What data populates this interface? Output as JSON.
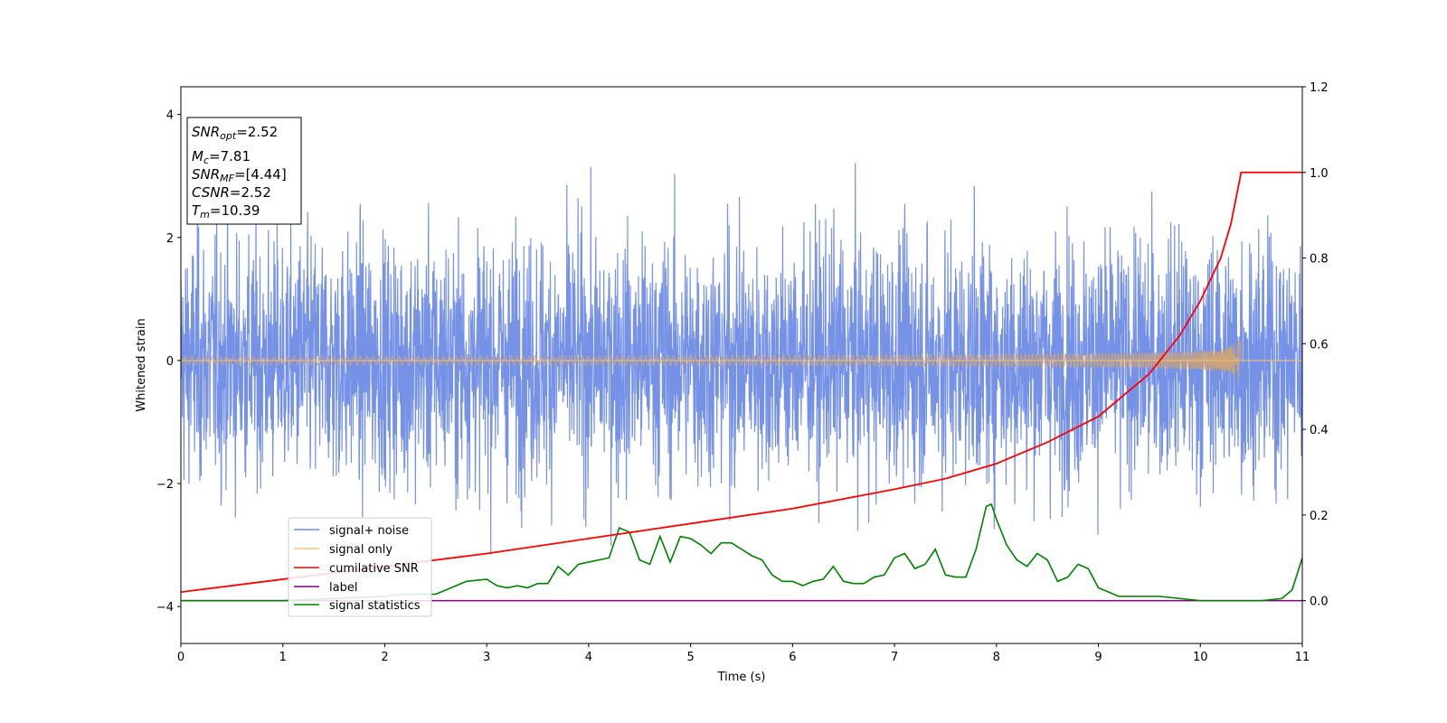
{
  "chart_data": {
    "type": "line",
    "title": "",
    "xlabel": "Time (s)",
    "ylabel": "Whitened strain",
    "y2label": "",
    "xlim": [
      0,
      11
    ],
    "ylim": [
      -4.6,
      4.45
    ],
    "y2lim": [
      -0.1,
      1.2
    ],
    "x_ticks": [
      "0",
      "1",
      "2",
      "3",
      "4",
      "5",
      "6",
      "7",
      "8",
      "9",
      "10",
      "11"
    ],
    "y_ticks": [
      "−4",
      "−2",
      "0",
      "2",
      "4"
    ],
    "y2_ticks": [
      "0.0",
      "0.2",
      "0.4",
      "0.6",
      "0.8",
      "1.0",
      "1.2"
    ],
    "grid": false,
    "legend_position": "lower-left",
    "colors": {
      "signal_noise": "#6f8ce6",
      "signal_only": "#f5c07a",
      "signal_only_envelope": "#c9a37b",
      "cumulative_snr": "#ff0000",
      "label": "#800080",
      "signal_statistics": "#008000"
    },
    "series": [
      {
        "name": "signal+ noise",
        "axis": "left",
        "style": "dense noise trace",
        "approx_std": 1.0,
        "approx_range": [
          -4.15,
          4.05
        ],
        "x_range": [
          0,
          11
        ]
      },
      {
        "name": "signal only",
        "axis": "left",
        "style": "chirp",
        "merger_time": 10.39,
        "peak_amplitude": 0.45,
        "x_range": [
          0,
          10.4
        ]
      },
      {
        "name": "cumilative SNR",
        "axis": "right",
        "x": [
          0,
          1,
          2,
          3,
          4,
          5,
          6,
          7,
          7.5,
          8,
          8.5,
          9,
          9.5,
          9.8,
          10,
          10.2,
          10.3,
          10.4,
          11
        ],
        "y": [
          0.02,
          0.05,
          0.08,
          0.11,
          0.145,
          0.18,
          0.215,
          0.26,
          0.285,
          0.32,
          0.37,
          0.43,
          0.53,
          0.62,
          0.7,
          0.8,
          0.88,
          1.0,
          1.0
        ]
      },
      {
        "name": "label",
        "axis": "right",
        "x": [
          0,
          11
        ],
        "y": [
          0.0,
          0.0
        ]
      },
      {
        "name": "signal statistics",
        "axis": "right",
        "x": [
          0,
          1,
          2,
          2.2,
          2.5,
          2.8,
          3.0,
          3.1,
          3.2,
          3.3,
          3.4,
          3.5,
          3.6,
          3.7,
          3.8,
          3.9,
          4.0,
          4.1,
          4.2,
          4.3,
          4.35,
          4.4,
          4.5,
          4.6,
          4.7,
          4.8,
          4.9,
          5.0,
          5.1,
          5.2,
          5.3,
          5.4,
          5.5,
          5.6,
          5.7,
          5.8,
          5.9,
          6.0,
          6.1,
          6.2,
          6.3,
          6.4,
          6.5,
          6.6,
          6.7,
          6.8,
          6.9,
          7.0,
          7.1,
          7.2,
          7.3,
          7.4,
          7.5,
          7.6,
          7.7,
          7.8,
          7.9,
          7.95,
          8.0,
          8.1,
          8.2,
          8.3,
          8.4,
          8.5,
          8.6,
          8.7,
          8.8,
          8.9,
          9.0,
          9.2,
          9.4,
          9.6,
          9.8,
          10.0,
          10.2,
          10.4,
          10.6,
          10.8,
          10.9,
          11.0
        ],
        "y": [
          0.0,
          0.0,
          0.01,
          0.015,
          0.015,
          0.045,
          0.05,
          0.035,
          0.03,
          0.035,
          0.03,
          0.04,
          0.04,
          0.08,
          0.06,
          0.085,
          0.09,
          0.095,
          0.1,
          0.17,
          0.165,
          0.16,
          0.095,
          0.085,
          0.15,
          0.09,
          0.15,
          0.145,
          0.13,
          0.11,
          0.135,
          0.135,
          0.12,
          0.105,
          0.095,
          0.06,
          0.045,
          0.045,
          0.035,
          0.045,
          0.05,
          0.08,
          0.045,
          0.04,
          0.04,
          0.055,
          0.06,
          0.1,
          0.11,
          0.075,
          0.085,
          0.12,
          0.06,
          0.055,
          0.055,
          0.12,
          0.22,
          0.225,
          0.19,
          0.13,
          0.095,
          0.08,
          0.11,
          0.095,
          0.045,
          0.055,
          0.085,
          0.075,
          0.03,
          0.01,
          0.01,
          0.01,
          0.005,
          0.0,
          0.0,
          0.0,
          0.0,
          0.005,
          0.025,
          0.1
        ]
      }
    ]
  },
  "legend": {
    "items": [
      "signal+ noise",
      "signal only",
      "cumilative SNR",
      "label",
      "signal statistics"
    ]
  },
  "info_box": {
    "snr_opt_symbol": "SNR",
    "snr_opt_sub": "opt",
    "snr_opt_value": "=2.52",
    "mc_symbol": "M",
    "mc_sub": "c",
    "mc_value": "=7.81",
    "snr_mf_symbol": "SNR",
    "snr_mf_sub": "MF",
    "snr_mf_value": "=[4.44]",
    "csnr_symbol": "CSNR",
    "csnr_value": "=2.52",
    "tm_symbol": "T",
    "tm_sub": "m",
    "tm_value": "=10.39"
  }
}
